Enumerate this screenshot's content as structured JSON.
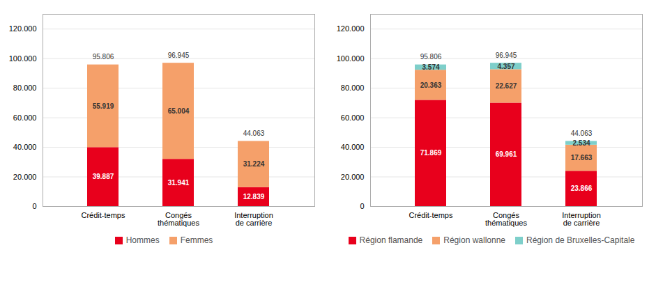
{
  "chart_data": [
    {
      "type": "bar",
      "stacked": true,
      "data_labels": true,
      "grid": true,
      "legend": "lower center",
      "categories": [
        "Crédit-temps",
        "Congés\nthématiques",
        "Interruption\nde carrière"
      ],
      "series": [
        {
          "name": "Hommes",
          "color": "#e8001c",
          "values": [
            39887,
            31941,
            12839
          ],
          "value_labels": [
            "39.887",
            "31.941",
            "12.839"
          ]
        },
        {
          "name": "Femmes",
          "color": "#f5a06a",
          "values": [
            55919,
            65004,
            31224
          ],
          "value_labels": [
            "55.919",
            "65.004",
            "31.224"
          ]
        }
      ],
      "totals": [
        95806,
        96945,
        44063
      ],
      "total_labels": [
        "95.806",
        "96.945",
        "44.063"
      ],
      "ylim": [
        0,
        130000
      ],
      "yticks": [
        0,
        {
          "value": 20000,
          "label": "20.000"
        },
        {
          "value": 40000,
          "label": "40.000"
        },
        {
          "value": 60000,
          "label": "60.000"
        },
        {
          "value": 80000,
          "label": "80.000"
        },
        {
          "value": 100000,
          "label": "100.000"
        },
        {
          "value": 120000,
          "label": "120.000"
        }
      ]
    },
    {
      "type": "bar",
      "stacked": true,
      "data_labels": true,
      "grid": true,
      "legend": "lower left",
      "categories": [
        "Crédit-temps",
        "Congés\nthématiques",
        "Interruption\nde carrière"
      ],
      "series": [
        {
          "name": "Région flamande",
          "color": "#e8001c",
          "values": [
            71869,
            69961,
            23866
          ],
          "value_labels": [
            "71.869",
            "69.961",
            "23.866"
          ]
        },
        {
          "name": "Région wallonne",
          "color": "#f5a06a",
          "values": [
            20363,
            22627,
            17663
          ],
          "value_labels": [
            "20.363",
            "22.627",
            "17.663"
          ]
        },
        {
          "name": "Région de Bruxelles-Capitale",
          "color": "#7ecfca",
          "values": [
            3574,
            4357,
            2534
          ],
          "value_labels": [
            "3.574",
            "4.357",
            "2.534"
          ]
        }
      ],
      "totals": [
        95806,
        96945,
        44063
      ],
      "total_labels": [
        "95.806",
        "96.945",
        "44.063"
      ],
      "ylim": [
        0,
        130000
      ],
      "yticks": [
        0,
        {
          "value": 20000,
          "label": "20.000"
        },
        {
          "value": 40000,
          "label": "40.000"
        },
        {
          "value": 60000,
          "label": "60.000"
        },
        {
          "value": 80000,
          "label": "80.000"
        },
        {
          "value": 100000,
          "label": "100.000"
        },
        {
          "value": 120000,
          "label": "120.000"
        }
      ]
    }
  ]
}
